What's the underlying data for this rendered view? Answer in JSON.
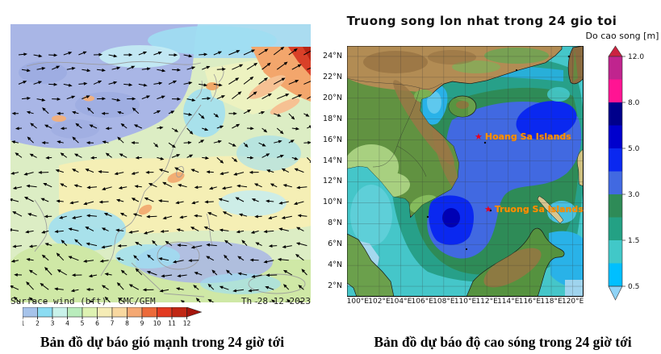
{
  "wind_panel": {
    "legend_label": "Surface wind (bft)",
    "model_label": "CMC/GEM",
    "date_label": "Th 28-12-2023",
    "caption": "Bản đồ dự báo gió mạnh trong 24 giờ tới",
    "colorbar": {
      "tick_labels": [
        "1",
        "2",
        "3",
        "4",
        "5",
        "6",
        "7",
        "8",
        "9",
        "10",
        "11",
        "12"
      ],
      "segment_colors": [
        "#a6c3ea",
        "#8bdcf2",
        "#c9f2ea",
        "#b9ecbc",
        "#def2b2",
        "#f5ecb6",
        "#f8d8a0",
        "#f4a873",
        "#ec6a3a",
        "#e23a20",
        "#c02714"
      ],
      "arrow_color": "#a5150c"
    },
    "arrow_grid": {
      "cols": 20,
      "rows": 18,
      "color": "#000000"
    }
  },
  "wave_panel": {
    "title": "Truong song lon nhat trong 24 gio toi",
    "caption": "Bản đồ dự báo độ cao sóng trong 24 giờ tới",
    "colorbar": {
      "title": "Do cao song [m]",
      "tick_labels": [
        "12.0",
        "8.0",
        "5.0",
        "3.0",
        "1.5",
        "0.5"
      ],
      "tick_positions": [
        0,
        0.2,
        0.4,
        0.6,
        0.8,
        1.0
      ],
      "segment_colors": [
        "#c0248e",
        "#ff1493",
        "#00008b",
        "#0000cd",
        "#0a28f0",
        "#4169e1",
        "#2e8b57",
        "#23a184",
        "#41c8c8",
        "#00bfff"
      ],
      "top_arrow_color": "#cb2340",
      "bottom_arrow_color": "#8fd3f6"
    },
    "y_tick_labels": [
      "24°N",
      "22°N",
      "20°N",
      "18°N",
      "16°N",
      "14°N",
      "12°N",
      "10°N",
      "8°N",
      "6°N",
      "4°N",
      "2°N"
    ],
    "x_tick_labels": [
      "100°E",
      "102°E",
      "104°E",
      "106°E",
      "108°E",
      "110°E",
      "112°E",
      "114°E",
      "116°E",
      "118°E",
      "120°E"
    ],
    "islands": [
      {
        "label": "Hoang Sa Islands",
        "marker": "star"
      },
      {
        "label": "Truong Sa Islands",
        "marker": "star"
      }
    ],
    "island_label_color": "#ff9000",
    "marker_color": "#e60023"
  }
}
